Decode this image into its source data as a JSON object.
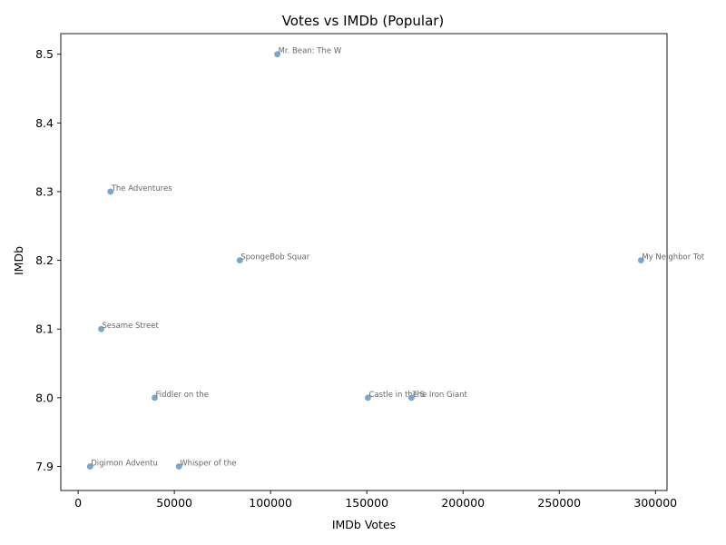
{
  "chart_data": {
    "type": "scatter",
    "title": "Votes vs IMDb (Popular)",
    "xlabel": "IMDb Votes",
    "ylabel": "IMDb",
    "xlim": [
      -9000,
      306000
    ],
    "ylim": [
      7.865,
      8.53
    ],
    "xticks": [
      0,
      50000,
      100000,
      150000,
      200000,
      250000,
      300000
    ],
    "xtick_labels": [
      "0",
      "50000",
      "100000",
      "150000",
      "200000",
      "250000",
      "300000"
    ],
    "yticks": [
      7.9,
      8.0,
      8.1,
      8.2,
      8.3,
      8.4,
      8.5
    ],
    "ytick_labels": [
      "7.9",
      "8.0",
      "8.1",
      "8.2",
      "8.3",
      "8.4",
      "8.5"
    ],
    "grid": false,
    "point_color": "#6b9bc8",
    "points": [
      {
        "label": "Mr. Bean: The W",
        "x": 103500,
        "y": 8.5
      },
      {
        "label": "The Adventures",
        "x": 16800,
        "y": 8.3
      },
      {
        "label": "SpongeBob Squar",
        "x": 84000,
        "y": 8.2
      },
      {
        "label": "My Neighbor Tot",
        "x": 292500,
        "y": 8.2
      },
      {
        "label": "Sesame Street",
        "x": 12000,
        "y": 8.1
      },
      {
        "label": "Fiddler on the",
        "x": 39800,
        "y": 8.0
      },
      {
        "label": "Castle in the S",
        "x": 150600,
        "y": 8.0
      },
      {
        "label": "The Iron Giant",
        "x": 173200,
        "y": 8.0
      },
      {
        "label": "Digimon Adventu",
        "x": 6200,
        "y": 7.9
      },
      {
        "label": "Whisper of the",
        "x": 52400,
        "y": 7.9
      }
    ]
  }
}
